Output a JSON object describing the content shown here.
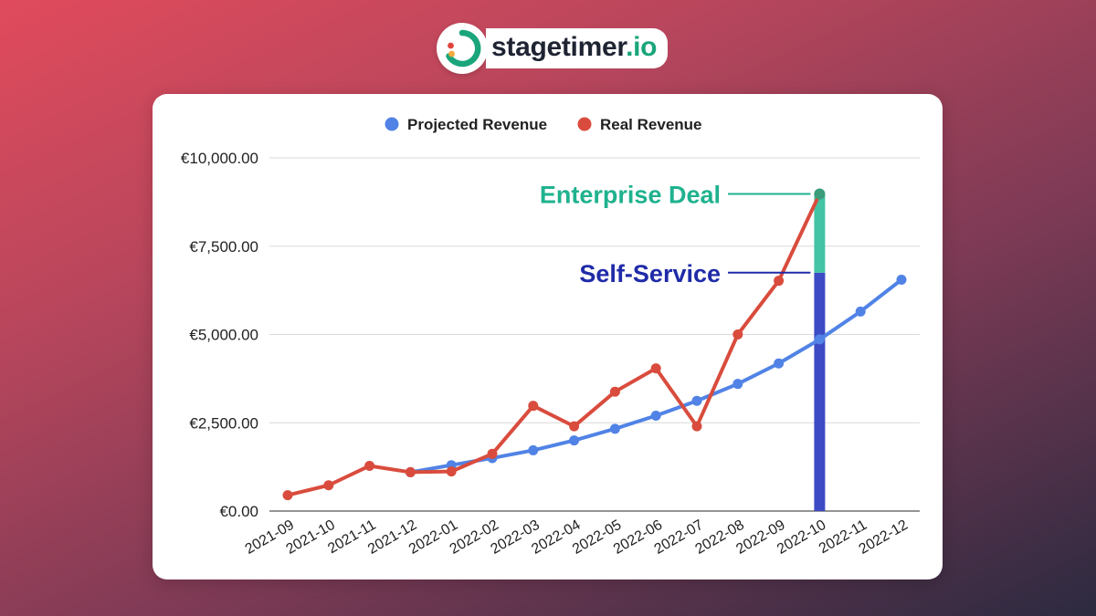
{
  "brand": {
    "name": "stagetimer",
    "tld": ".io",
    "logo_icon": "stagetimer-logo-icon",
    "colors": {
      "green": "#1aa57b",
      "red": "#e0453c",
      "orange": "#f3a93c",
      "dark": "#1f2433"
    }
  },
  "chart_data": {
    "type": "line",
    "title": "",
    "xlabel": "",
    "ylabel": "",
    "legend_position": "top-center",
    "grid": true,
    "ylim": [
      0,
      10000
    ],
    "y_ticks": [
      0,
      2500,
      5000,
      7500,
      10000
    ],
    "y_tick_labels": [
      "€0.00",
      "€2,500.00",
      "€5,000.00",
      "€7,500.00",
      "€10,000.00"
    ],
    "categories": [
      "2021-09",
      "2021-10",
      "2021-11",
      "2021-12",
      "2022-01",
      "2022-02",
      "2022-03",
      "2022-04",
      "2022-05",
      "2022-06",
      "2022-07",
      "2022-08",
      "2022-09",
      "2022-10",
      "2022-11",
      "2022-12"
    ],
    "series": [
      {
        "name": "Projected Revenue",
        "color": "#5183e6",
        "values": [
          null,
          null,
          null,
          1100,
          1300,
          1500,
          1720,
          2000,
          2330,
          2700,
          3120,
          3600,
          4180,
          4860,
          5650,
          6550
        ]
      },
      {
        "name": "Real Revenue",
        "color": "#d94c3d",
        "values": [
          450,
          730,
          1280,
          1100,
          1120,
          1620,
          2980,
          2400,
          3380,
          4040,
          2400,
          5000,
          6520,
          8980,
          null,
          null
        ]
      }
    ],
    "stacked_bar": {
      "category": "2022-10",
      "segments": [
        {
          "label": "Self-Service",
          "value": 6750,
          "color": "#3d4bc4",
          "label_color": "#1f2ba8"
        },
        {
          "label": "Enterprise Deal",
          "value": 2230,
          "color": "#43c4a4",
          "label_color": "#1fb28e"
        }
      ]
    }
  }
}
